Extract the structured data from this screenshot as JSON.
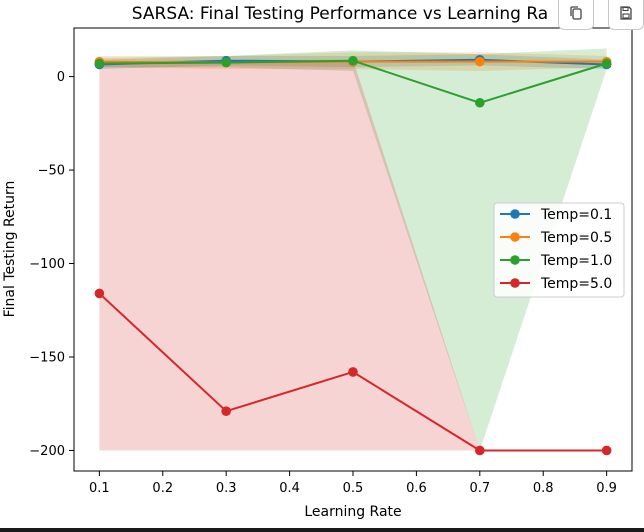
{
  "chart_data": {
    "type": "line",
    "title": "SARSA: Final Testing Performance vs Learning Ra",
    "xlabel": "Learning Rate",
    "ylabel": "Final Testing Return",
    "x": [
      0.1,
      0.3,
      0.5,
      0.7,
      0.9
    ],
    "xlim": [
      0.06,
      0.94
    ],
    "ylim": [
      -211,
      26
    ],
    "xticks": [
      0.1,
      0.2,
      0.3,
      0.4,
      0.5,
      0.6,
      0.7,
      0.8,
      0.9
    ],
    "xtick_labels": [
      "0.1",
      "0.2",
      "0.3",
      "0.4",
      "0.5",
      "0.6",
      "0.7",
      "0.8",
      "0.9"
    ],
    "yticks": [
      0,
      -50,
      -100,
      -150,
      -200
    ],
    "ytick_labels": [
      "0",
      "−50",
      "−100",
      "−150",
      "−200"
    ],
    "legend_position": "center-right",
    "grid": false,
    "series": [
      {
        "name": "Temp=0.1",
        "color": "#1f77b4",
        "values": [
          6.5,
          8.5,
          8.0,
          9.0,
          6.5
        ],
        "band_low": [
          4,
          6,
          5,
          6,
          4
        ],
        "band_high": [
          9,
          11,
          11,
          12,
          9
        ]
      },
      {
        "name": "Temp=0.5",
        "color": "#ff7f0e",
        "values": [
          8.0,
          7.5,
          8.0,
          8.0,
          8.0
        ],
        "band_low": [
          5,
          4,
          4,
          3,
          5
        ],
        "band_high": [
          11,
          11,
          13,
          13,
          11
        ]
      },
      {
        "name": "Temp=1.0",
        "color": "#2ca02c",
        "values": [
          7.0,
          7.5,
          8.5,
          -14.0,
          7.0
        ],
        "band_low": [
          5,
          5,
          3,
          -200,
          4
        ],
        "band_high": [
          10,
          11,
          14,
          12,
          15
        ]
      },
      {
        "name": "Temp=5.0",
        "color": "#d62728",
        "values": [
          -116.0,
          -179.0,
          -158.0,
          -200.0,
          -200.0
        ],
        "band_low": [
          -200,
          -200,
          -200,
          -200,
          -200
        ],
        "band_high": [
          8,
          9,
          9,
          -200,
          -200
        ]
      }
    ]
  },
  "toolbar": {
    "copy_icon": "copy-icon",
    "save_icon": "save-icon"
  }
}
